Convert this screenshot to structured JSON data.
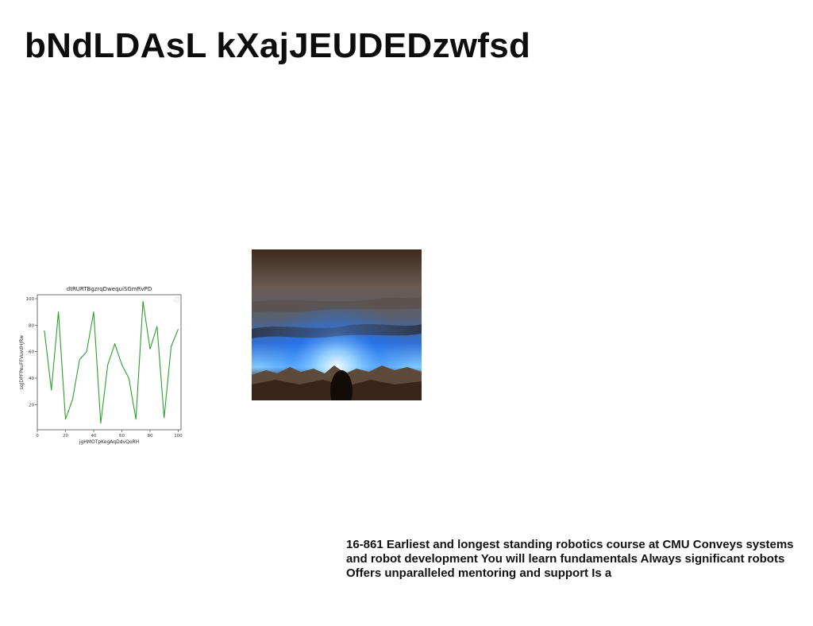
{
  "header": {
    "title": "bNdLDAsL kXajJEUDEDzwfsd"
  },
  "chart_data": {
    "type": "line",
    "title": "dtRURTBgzrqDwequiSGmRvPD",
    "xlabel": "jgHMOTpKegAqDdvQoRH",
    "ylabel": "sqJDPFPeuFFVuvdHJRw",
    "xlim": [
      0,
      102
    ],
    "ylim": [
      1,
      103
    ],
    "xticks": [
      0,
      20,
      40,
      60,
      80,
      100
    ],
    "yticks": [
      20,
      40,
      60,
      80,
      100
    ],
    "series": [
      {
        "name": "",
        "color": "#2ca02c",
        "x": [
          5,
          10,
          15,
          20,
          25,
          30,
          35,
          40,
          45,
          50,
          55,
          60,
          65,
          70,
          75,
          80,
          85,
          90,
          95,
          100
        ],
        "values": [
          76,
          31,
          90,
          9,
          24,
          54,
          60,
          90,
          6,
          50,
          66,
          50,
          40,
          9,
          98,
          62,
          79,
          10,
          64,
          77
        ]
      }
    ]
  },
  "photo": {
    "description_icon": "landscape-image-icon"
  },
  "body": {
    "text": "16-861 Earliest and longest standing robotics course at CMU Conveys systems and robot development You will learn fundamentals Always significant robots Offers unparalleled mentoring and support Is a"
  }
}
